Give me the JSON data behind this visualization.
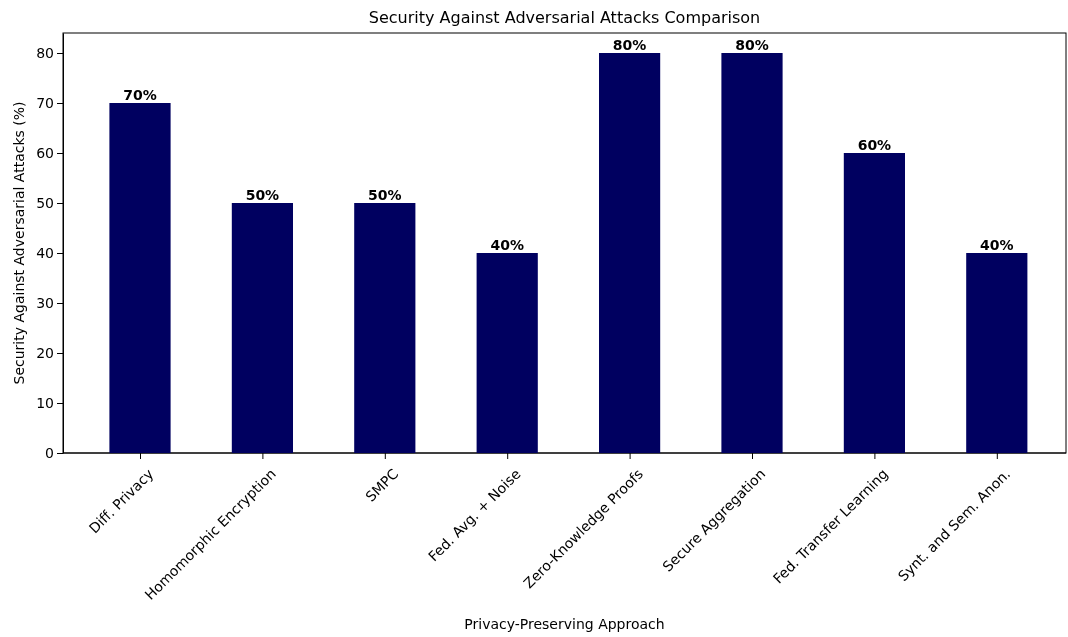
{
  "chart_data": {
    "type": "bar",
    "title": "Security Against Adversarial Attacks Comparison",
    "xlabel": "Privacy-Preserving Approach",
    "ylabel": "Security Against Adversarial Attacks (%)",
    "categories": [
      "Diff. Privacy",
      "Homomorphic Encryption",
      "SMPC",
      "Fed. Avg. + Noise",
      "Zero-Knowledge Proofs",
      "Secure Aggregation",
      "Fed. Transfer Learning",
      "Synt. and Sem. Anon."
    ],
    "values": [
      70,
      50,
      50,
      40,
      80,
      80,
      60,
      40
    ],
    "value_labels": [
      "70%",
      "50%",
      "50%",
      "40%",
      "80%",
      "80%",
      "60%",
      "40%"
    ],
    "color": "#000060",
    "ylim": [
      0,
      84
    ],
    "yticks": [
      0,
      10,
      20,
      30,
      40,
      50,
      60,
      70,
      80
    ]
  }
}
